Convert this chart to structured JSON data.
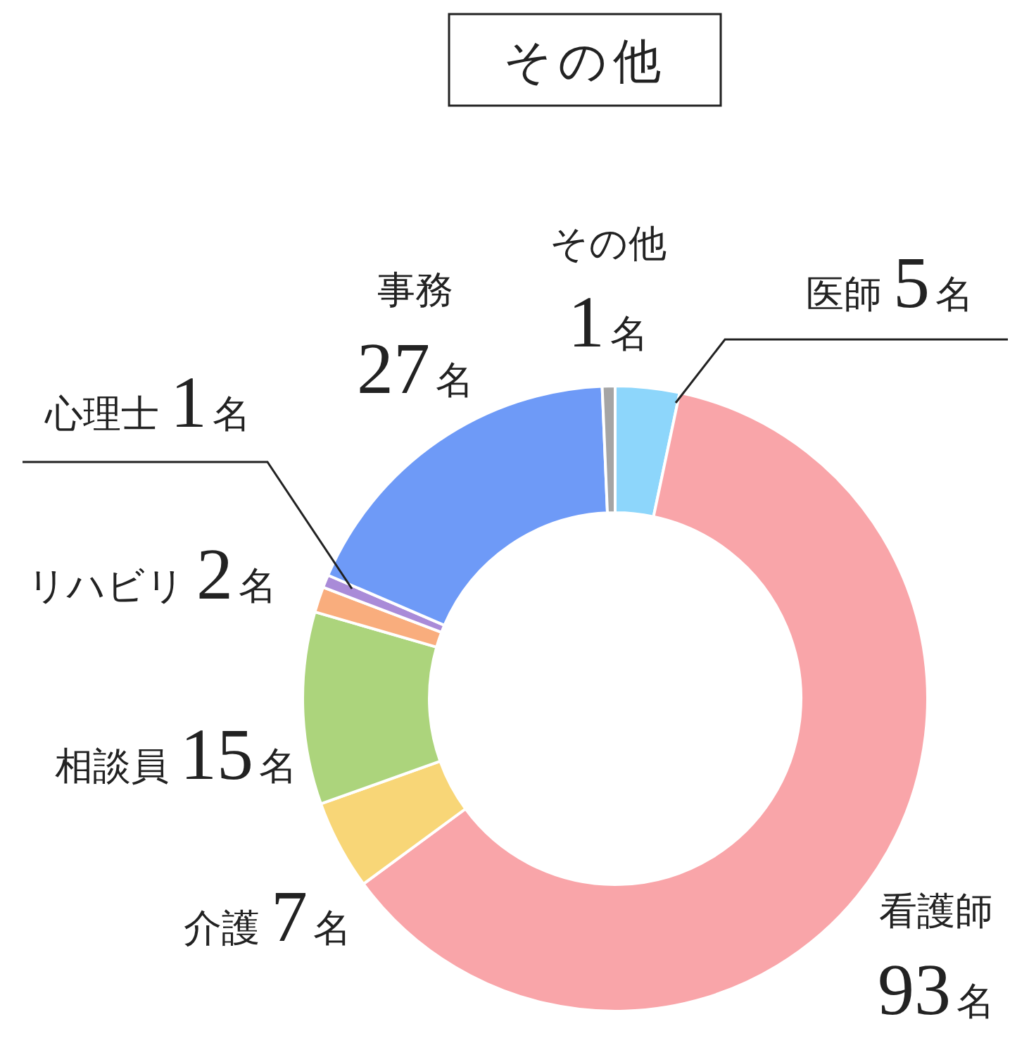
{
  "chart_data": {
    "type": "donut",
    "title": "その他",
    "categories": [
      "医師",
      "看護師",
      "介護",
      "相談員",
      "リハビリ",
      "心理士",
      "事務",
      "その他"
    ],
    "values": [
      5,
      93,
      7,
      15,
      2,
      1,
      27,
      1
    ],
    "colors": [
      "#8dd6fb",
      "#f9a5a9",
      "#f8d677",
      "#acd47c",
      "#f9ad7d",
      "#a98bd8",
      "#6e9af7",
      "#a5a5a5"
    ],
    "value_labels": [
      "5名",
      "93名",
      "7名",
      "15名",
      "2名",
      "1名",
      "27名",
      "1名"
    ]
  }
}
